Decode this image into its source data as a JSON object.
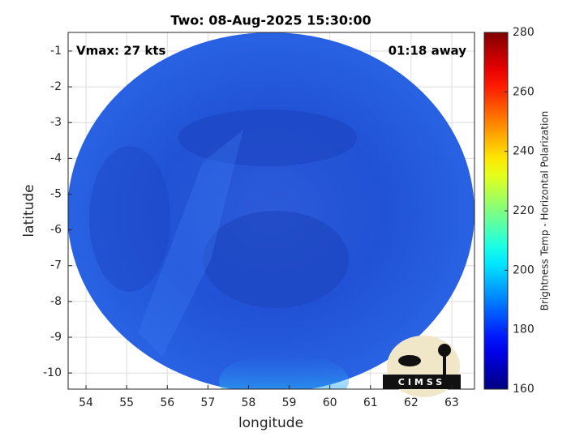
{
  "chart_data": {
    "type": "map",
    "title": "Two: 08-Aug-2025 15:30:00",
    "annotations": [
      "Vmax: 27 kts",
      "01:18 away"
    ],
    "xlabel": "longitude",
    "ylabel": "latitude",
    "xlim": [
      53.56,
      63.56
    ],
    "xticks": [
      54,
      55,
      56,
      57,
      58,
      59,
      60,
      61,
      62,
      63
    ],
    "ylim": [
      -10.45,
      -0.48
    ],
    "yticks": [
      -1,
      -2,
      -3,
      -4,
      -5,
      -6,
      -7,
      -8,
      -9,
      -10
    ],
    "grid": true,
    "colorbar": {
      "label": "Brightness Temp - Horizontal Polarization",
      "lim": [
        160,
        280
      ],
      "ticks": [
        160,
        180,
        200,
        220,
        240,
        260,
        280
      ],
      "colormap": "jet"
    },
    "logo": "CIMSS"
  }
}
